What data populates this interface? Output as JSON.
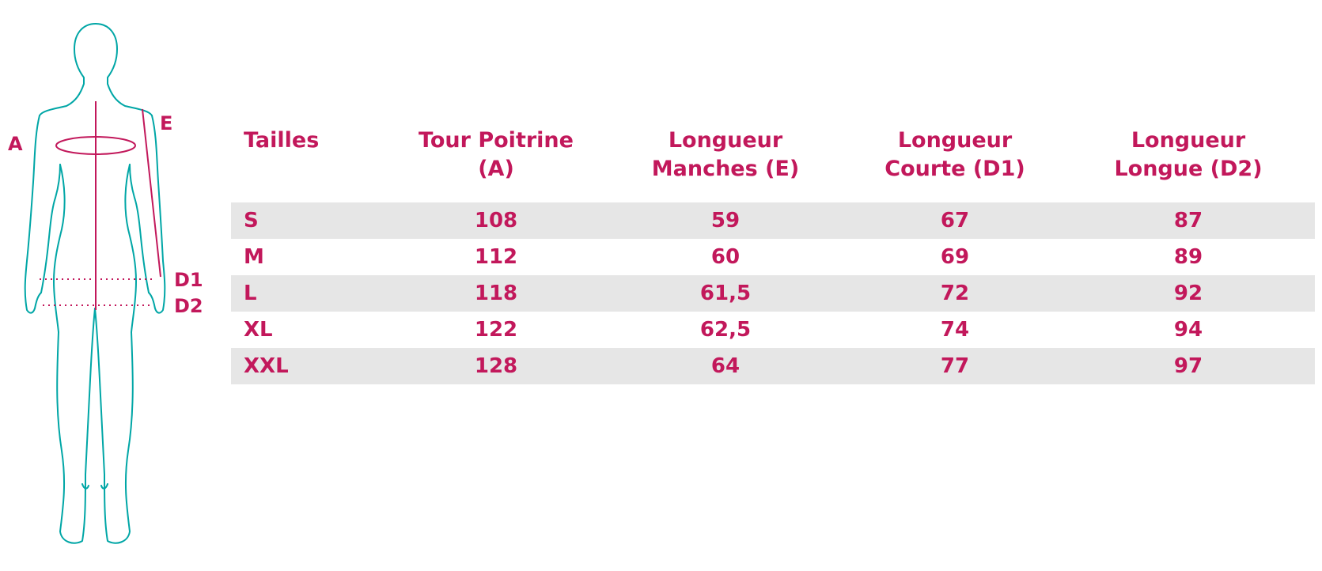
{
  "colors": {
    "accent": "#c2185b",
    "outline": "#00a6a6",
    "stripe": "#e6e6e6"
  },
  "figure": {
    "icon": "body-silhouette-icon",
    "labels": {
      "a": "A",
      "e": "E",
      "d1": "D1",
      "d2": "D2"
    }
  },
  "table": {
    "headers": [
      "Tailles",
      "Tour Poitrine\n(A)",
      "Longueur\nManches (E)",
      "Longueur\nCourte (D1)",
      "Longueur\nLongue (D2)"
    ],
    "rows": [
      [
        "S",
        "108",
        "59",
        "67",
        "87"
      ],
      [
        "M",
        "112",
        "60",
        "69",
        "89"
      ],
      [
        "L",
        "118",
        "61,5",
        "72",
        "92"
      ],
      [
        "XL",
        "122",
        "62,5",
        "74",
        "94"
      ],
      [
        "XXL",
        "128",
        "64",
        "77",
        "97"
      ]
    ]
  }
}
